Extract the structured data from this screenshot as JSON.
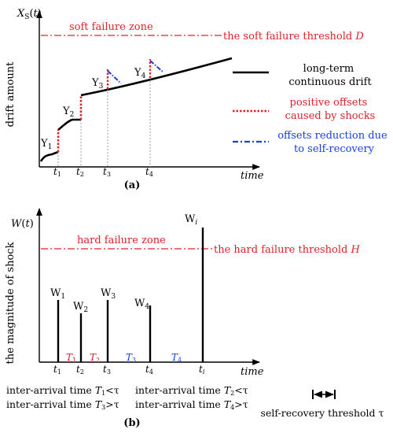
{
  "panel_a": {
    "y_axis_label": "drift amount",
    "zone_label": "soft failure zone",
    "threshold_label": "the soft failure threshold ",
    "threshold_symbol": "D",
    "time_label": "time",
    "caption": "(a)",
    "y_labels": [
      {
        "main": "Y",
        "sub": "1"
      },
      {
        "main": "Y",
        "sub": "2"
      },
      {
        "main": "Y",
        "sub": "3"
      },
      {
        "main": "Y",
        "sub": "4"
      }
    ],
    "t_labels": [
      {
        "main": "t",
        "sub": "1"
      },
      {
        "main": "t",
        "sub": "2"
      },
      {
        "main": "t",
        "sub": "3"
      },
      {
        "main": "t",
        "sub": "4"
      }
    ],
    "legend": [
      {
        "lines": [
          "long-term",
          "continuous drift"
        ],
        "color": "#000000",
        "style": "solid"
      },
      {
        "lines": [
          "positive offsets",
          "caused by shocks"
        ],
        "color": "#e0202a",
        "style": "dotted"
      },
      {
        "lines": [
          "offsets reduction due",
          "to self-recovery"
        ],
        "color": "#1a3ee0",
        "style": "dashdot"
      }
    ]
  },
  "panel_b": {
    "y_axis_label": "the magnitude of shock",
    "zone_label": "hard failure zone",
    "threshold_label": "the hard failure threshold ",
    "threshold_symbol": "H",
    "time_label": "time",
    "caption": "(b)",
    "w_labels": [
      {
        "main": "W",
        "sub": "1"
      },
      {
        "main": "W",
        "sub": "2"
      },
      {
        "main": "W",
        "sub": "3"
      },
      {
        "main": "W",
        "sub": "4"
      },
      {
        "main": "W",
        "sub": "i"
      }
    ],
    "t_labels": [
      {
        "main": "t",
        "sub": "1"
      },
      {
        "main": "t",
        "sub": "2"
      },
      {
        "main": "t",
        "sub": "3"
      },
      {
        "main": "t",
        "sub": "4"
      },
      {
        "main": "t",
        "sub": "i"
      }
    ],
    "interval_labels": [
      {
        "main": "T",
        "sub": "1",
        "color": "#e0202a"
      },
      {
        "main": "T",
        "sub": "2",
        "color": "#e0202a"
      },
      {
        "main": "T",
        "sub": "3",
        "color": "#1a3ee0"
      },
      {
        "main": "T",
        "sub": "4",
        "color": "#1a3ee0"
      }
    ],
    "notes": [
      {
        "prefix": "inter-arrival time ",
        "main": "T",
        "sub": "1",
        "suffix": "<τ"
      },
      {
        "prefix": "inter-arrival time ",
        "main": "T",
        "sub": "2",
        "suffix": "<τ"
      },
      {
        "prefix": "inter-arrival time ",
        "main": "T",
        "sub": "3",
        "suffix": ">τ"
      },
      {
        "prefix": "inter-arrival time ",
        "main": "T",
        "sub": "4",
        "suffix": ">τ"
      }
    ],
    "recovery_label": "self-recovery threshold τ"
  },
  "colors": {
    "red": "#e0202a",
    "blue": "#1a3ee0",
    "black": "#000000"
  }
}
